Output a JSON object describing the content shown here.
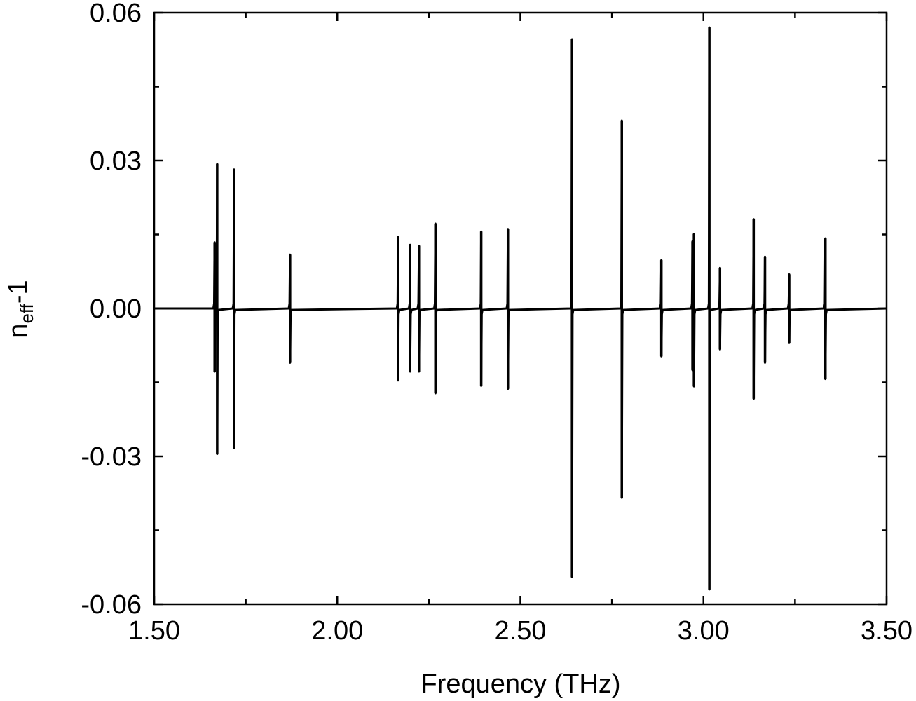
{
  "chart_data": {
    "type": "line",
    "title": "",
    "xlabel": "Frequency (THz)",
    "ylabel": {
      "main": "n",
      "subscript": "eff",
      "suffix": "-1"
    },
    "xlim": [
      1.5,
      3.5
    ],
    "ylim": [
      -0.06,
      0.06
    ],
    "x_ticks": [
      1.5,
      2.0,
      2.5,
      3.0,
      3.5
    ],
    "x_tick_labels": [
      "1.50",
      "2.00",
      "2.50",
      "3.00",
      "3.50"
    ],
    "y_ticks": [
      -0.06,
      -0.03,
      0.0,
      0.03,
      0.06
    ],
    "y_tick_labels": [
      "-0.06",
      "-0.03",
      "0.00",
      "0.03",
      "0.06"
    ],
    "grid": false,
    "legend": "none",
    "line_color": "#000000",
    "resonances": [
      {
        "x": 1.665,
        "peak": 0.0134,
        "dip": -0.0128
      },
      {
        "x": 1.672,
        "peak": 0.0293,
        "dip": -0.0295
      },
      {
        "x": 1.718,
        "peak": 0.0282,
        "dip": -0.0283
      },
      {
        "x": 1.871,
        "peak": 0.0109,
        "dip": -0.011
      },
      {
        "x": 2.166,
        "peak": 0.0145,
        "dip": -0.0146
      },
      {
        "x": 2.199,
        "peak": 0.0129,
        "dip": -0.0128
      },
      {
        "x": 2.223,
        "peak": 0.0127,
        "dip": -0.0128
      },
      {
        "x": 2.268,
        "peak": 0.0172,
        "dip": -0.0172
      },
      {
        "x": 2.393,
        "peak": 0.0156,
        "dip": -0.0157
      },
      {
        "x": 2.466,
        "peak": 0.0161,
        "dip": -0.0163
      },
      {
        "x": 2.641,
        "peak": 0.0546,
        "dip": -0.0545
      },
      {
        "x": 2.777,
        "peak": 0.0381,
        "dip": -0.0384
      },
      {
        "x": 2.885,
        "peak": 0.0098,
        "dip": -0.0097
      },
      {
        "x": 2.97,
        "peak": 0.0136,
        "dip": -0.0125
      },
      {
        "x": 2.974,
        "peak": 0.0151,
        "dip": -0.0158
      },
      {
        "x": 3.016,
        "peak": 0.057,
        "dip": -0.057
      },
      {
        "x": 3.045,
        "peak": 0.0082,
        "dip": -0.0083
      },
      {
        "x": 3.137,
        "peak": 0.0181,
        "dip": -0.0183
      },
      {
        "x": 3.168,
        "peak": 0.0105,
        "dip": -0.011
      },
      {
        "x": 3.234,
        "peak": 0.0069,
        "dip": -0.007
      },
      {
        "x": 3.333,
        "peak": 0.0142,
        "dip": -0.0143
      }
    ]
  }
}
